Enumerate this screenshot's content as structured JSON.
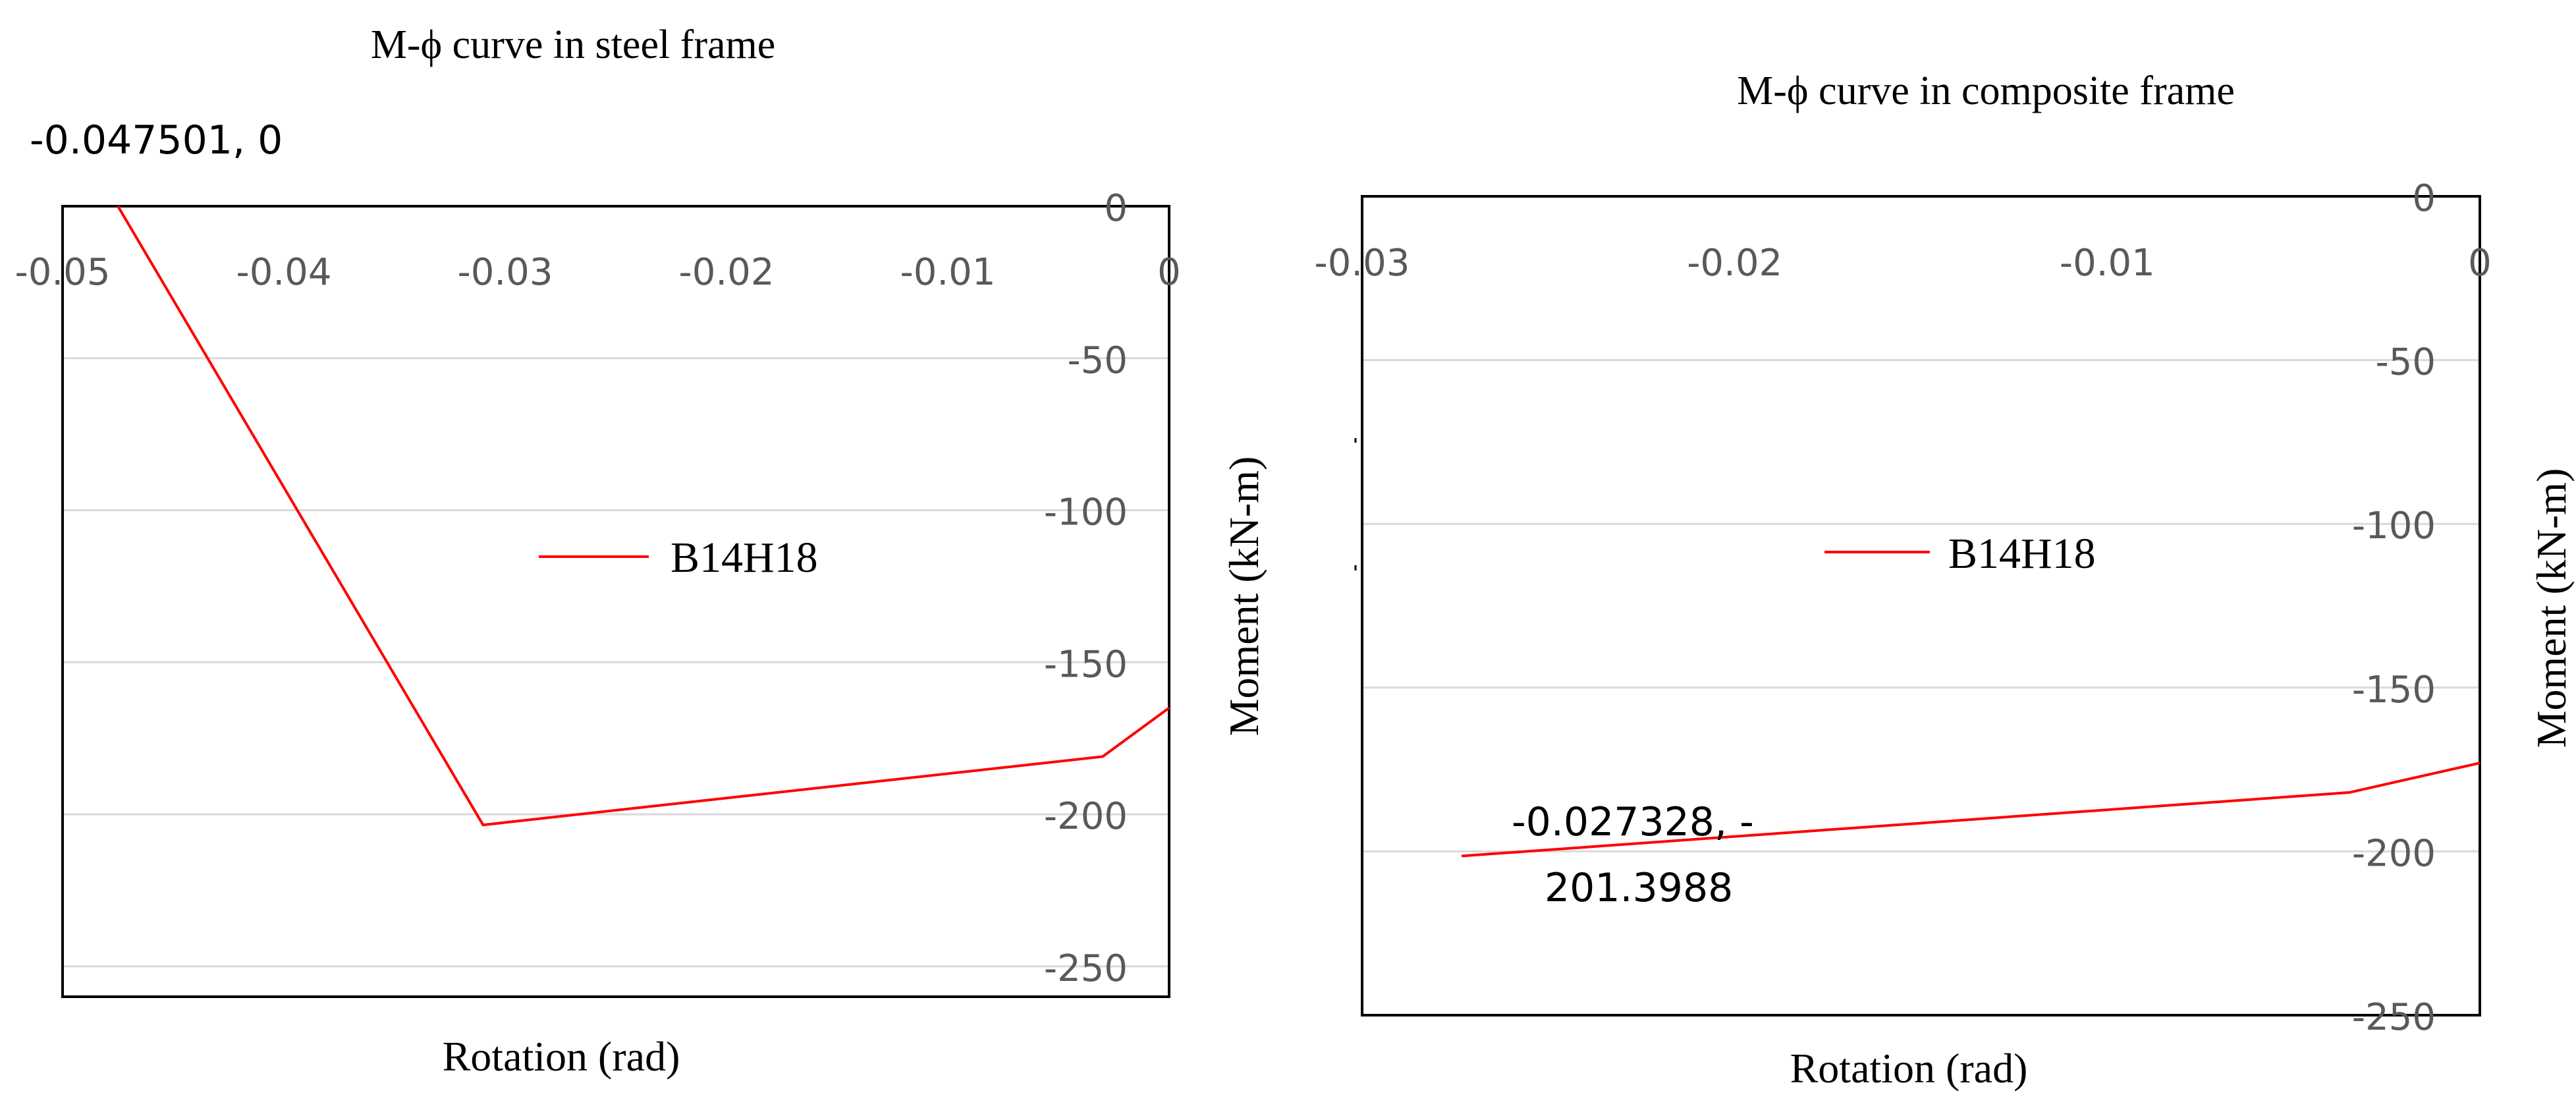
{
  "chart_data": [
    {
      "type": "line",
      "title": "M-ϕ curve in steel frame",
      "xlabel": "Rotation (rad)",
      "ylabel": "Moment (kN-m)",
      "xlim": [
        -0.05,
        0
      ],
      "ylim": [
        -260,
        0
      ],
      "x_ticks": [
        "-0.05",
        "-0.04",
        "-0.03",
        "-0.02",
        "-0.01",
        "0"
      ],
      "y_ticks": [
        "0",
        "-50",
        "-100",
        "-150",
        "-200",
        "-250"
      ],
      "grid": "horizontal",
      "legend": "center",
      "series": [
        {
          "name": "B14H18",
          "color": "#ff0000",
          "points": [
            [
              -0.047501,
              0
            ],
            [
              -0.031,
              -203.5
            ],
            [
              -0.003,
              -181
            ],
            [
              0,
              -165
            ]
          ]
        }
      ],
      "annotations": [
        {
          "text": "-0.047501, 0",
          "x": -0.047501,
          "y": 0
        }
      ]
    },
    {
      "type": "line",
      "title": "M-ϕ curve in composite frame",
      "xlabel": "Rotation (rad)",
      "ylabel": "Moment (kN-m)",
      "xlim": [
        -0.03,
        0
      ],
      "ylim": [
        -250,
        0
      ],
      "x_ticks": [
        "-0.03",
        "-0.02",
        "-0.01",
        "0"
      ],
      "y_ticks": [
        "0",
        "-50",
        "-100",
        "-150",
        "-200",
        "-250"
      ],
      "grid": "horizontal",
      "legend": "center",
      "series": [
        {
          "name": "B14H18",
          "color": "#ff0000",
          "points": [
            [
              -0.027328,
              -201.3988
            ],
            [
              -0.0035,
              -182
            ],
            [
              0,
              -173
            ]
          ]
        }
      ],
      "annotations": [
        {
          "text": "-0.027328, -",
          "text2": "201.3988",
          "x": -0.027328,
          "y": -201.3988
        }
      ]
    }
  ]
}
